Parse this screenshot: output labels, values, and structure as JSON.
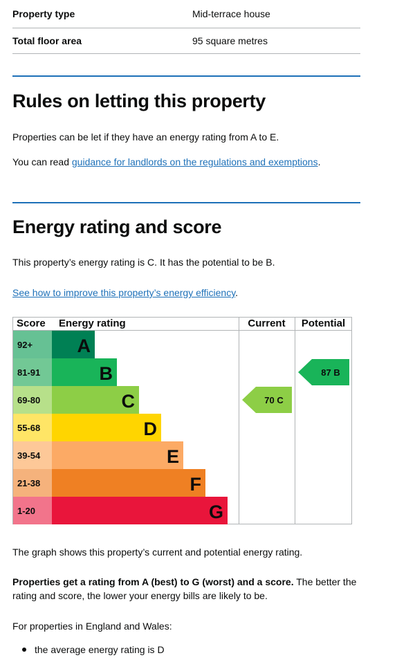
{
  "summary": [
    {
      "key": "Property type",
      "value": "Mid-terrace house"
    },
    {
      "key": "Total floor area",
      "value": "95 square metres"
    }
  ],
  "letting": {
    "heading": "Rules on letting this property",
    "para1": "Properties can be let if they have an energy rating from A to E.",
    "para2_prefix": "You can read ",
    "para2_link": "guidance for landlords on the regulations and exemptions",
    "para2_suffix": "."
  },
  "rating": {
    "heading": "Energy rating and score",
    "intro": "This property’s energy rating is C. It has the potential to be B.",
    "improve_link": "See how to improve this property’s energy efficiency",
    "improve_suffix": "."
  },
  "chart_data": {
    "type": "table",
    "headers": {
      "score": "Score",
      "rating": "Energy rating",
      "current": "Current",
      "potential": "Potential"
    },
    "bands": [
      {
        "score": "92+",
        "letter": "A",
        "color": "#008054",
        "light": "#66c194"
      },
      {
        "score": "81-91",
        "letter": "B",
        "color": "#19b459",
        "light": "#72c895"
      },
      {
        "score": "69-80",
        "letter": "C",
        "color": "#8dce46",
        "light": "#b7e08a"
      },
      {
        "score": "55-68",
        "letter": "D",
        "color": "#ffd500",
        "light": "#ffe566"
      },
      {
        "score": "39-54",
        "letter": "E",
        "color": "#fcaa65",
        "light": "#fdc898"
      },
      {
        "score": "21-38",
        "letter": "F",
        "color": "#ef8023",
        "light": "#f5b27c"
      },
      {
        "score": "1-20",
        "letter": "G",
        "color": "#e9153b",
        "light": "#f2748b"
      }
    ],
    "current": {
      "label": "70 C",
      "score": 70,
      "band": "C",
      "color": "#8dce46"
    },
    "potential": {
      "label": "87 B",
      "score": 87,
      "band": "B",
      "color": "#19b459"
    }
  },
  "after": {
    "graph_note": "The graph shows this property’s current and potential energy rating.",
    "bold_text": "Properties get a rating from A (best) to G (worst) and a score.",
    "rest_text": " The better the rating and score, the lower your energy bills are likely to be.",
    "england_wales": "For properties in England and Wales:",
    "bullet1": "the average energy rating is D"
  }
}
